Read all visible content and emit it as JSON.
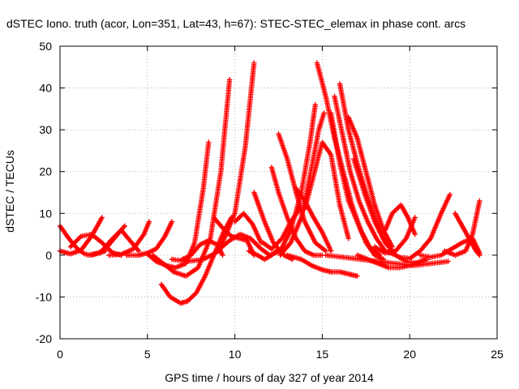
{
  "chart_data": {
    "type": "scatter",
    "title": "dSTEC Iono. truth (acor, Lon=351, Lat=43, h=67): STEC-STEC_elemax in phase cont. arcs",
    "xlabel": "GPS time / hours of day 327 of year 2014",
    "ylabel": "dSTEC  / TECUs",
    "xlim": [
      0,
      25
    ],
    "ylim": [
      -20,
      50
    ],
    "xticks": [
      0,
      5,
      10,
      15,
      20,
      25
    ],
    "yticks": [
      -20,
      -10,
      0,
      10,
      20,
      30,
      40,
      50
    ],
    "xtick_labels": [
      "0",
      "5",
      "10",
      "15",
      "20",
      "25"
    ],
    "ytick_labels": [
      "-20",
      "-10",
      "0",
      "10",
      "20",
      "30",
      "40",
      "50"
    ],
    "grid": true,
    "marker": "+",
    "color": "#ff0000",
    "series": [
      {
        "x": [
          0.0,
          0.5,
          1.0,
          1.4,
          1.8,
          2.2,
          2.6
        ],
        "y": [
          7,
          4,
          1.5,
          0.3,
          0,
          0.5,
          1
        ]
      },
      {
        "x": [
          0.0,
          0.6,
          1.2,
          1.8,
          2.4
        ],
        "y": [
          1,
          0.3,
          1.2,
          4.5,
          9
        ]
      },
      {
        "x": [
          0.6,
          1.2,
          1.8,
          2.4,
          3.0,
          3.5
        ],
        "y": [
          2,
          4.5,
          5,
          3,
          0.6,
          0
        ]
      },
      {
        "x": [
          1.6,
          2.2,
          2.7,
          3.3,
          3.7
        ],
        "y": [
          0,
          0.5,
          2,
          5,
          7
        ]
      },
      {
        "x": [
          2.3,
          2.9,
          3.5,
          4.0,
          4.5
        ],
        "y": [
          0.5,
          3.5,
          6,
          3.5,
          1
        ]
      },
      {
        "x": [
          2.8,
          3.5,
          4.2,
          4.8,
          5.1
        ],
        "y": [
          0,
          0.2,
          1.5,
          5,
          8
        ]
      },
      {
        "x": [
          3.8,
          4.5,
          5.0,
          5.5,
          6.0,
          6.4
        ],
        "y": [
          0,
          0,
          0.5,
          1.5,
          4.5,
          8
        ]
      },
      {
        "x": [
          5.0,
          5.5,
          6.1,
          6.6,
          7.2,
          7.7,
          8.2,
          8.5
        ],
        "y": [
          0.3,
          -1.5,
          -2.5,
          -3,
          -2,
          3,
          16,
          27
        ]
      },
      {
        "x": [
          5.3,
          5.9,
          6.5,
          7.2,
          7.9,
          8.6,
          9.2,
          9.7
        ],
        "y": [
          0,
          -2,
          -4,
          -5,
          -3,
          4,
          20,
          42
        ]
      },
      {
        "x": [
          5.8,
          6.3,
          6.9,
          7.3,
          7.8,
          8.3,
          8.8,
          9.3,
          9.8
        ],
        "y": [
          -7,
          -10,
          -11.5,
          -11,
          -9,
          -5,
          0,
          5,
          9
        ]
      },
      {
        "x": [
          7.0,
          7.5,
          8.0,
          8.5,
          9.0,
          9.3
        ],
        "y": [
          -1,
          0,
          2.5,
          3.5,
          2.5,
          0
        ]
      },
      {
        "x": [
          6.4,
          7.3,
          8.2,
          9.1,
          10.0,
          10.6,
          11.1
        ],
        "y": [
          -1,
          -1.5,
          -1,
          1,
          10,
          26,
          46
        ]
      },
      {
        "x": [
          8.8,
          9.3,
          9.8,
          10.3,
          10.7,
          11.1
        ],
        "y": [
          9,
          6.5,
          4.5,
          4,
          3.5,
          0
        ]
      },
      {
        "x": [
          9.0,
          9.7,
          10.3,
          10.9,
          11.5,
          12.0
        ],
        "y": [
          1,
          3.5,
          5,
          4,
          1.5,
          0
        ]
      },
      {
        "x": [
          10.0,
          10.5,
          11.0,
          11.5
        ],
        "y": [
          8,
          10,
          7.5,
          3
        ]
      },
      {
        "x": [
          10.8,
          11.3,
          11.7,
          12.1,
          12.5
        ],
        "y": [
          1,
          0,
          -1,
          0,
          1.5
        ]
      },
      {
        "x": [
          11.1,
          11.7,
          12.2,
          12.8,
          13.3
        ],
        "y": [
          15,
          8,
          3,
          0,
          -1
        ]
      },
      {
        "x": [
          11.6,
          12.1,
          12.7,
          13.2,
          13.7
        ],
        "y": [
          3,
          1.5,
          4,
          8,
          11
        ]
      },
      {
        "x": [
          12.1,
          12.5,
          13.0,
          13.5,
          14.0,
          14.5,
          15.0
        ],
        "y": [
          21,
          15,
          9,
          4,
          1,
          0,
          0
        ]
      },
      {
        "x": [
          12.5,
          13.0,
          13.5,
          14.0,
          14.6,
          15.2
        ],
        "y": [
          29,
          23,
          15,
          8,
          3,
          1
        ]
      },
      {
        "x": [
          12.0,
          12.6,
          13.2,
          13.8,
          14.3,
          14.6
        ],
        "y": [
          0,
          1,
          6,
          15,
          27,
          36
        ]
      },
      {
        "x": [
          12.6,
          13.2,
          13.8,
          14.3,
          14.8,
          15.1
        ],
        "y": [
          0,
          3,
          9,
          19,
          30,
          34
        ]
      },
      {
        "x": [
          13.0,
          13.8,
          14.4,
          15.0,
          15.5,
          16.0,
          16.5,
          17.0
        ],
        "y": [
          0,
          -1,
          -2.5,
          -3.5,
          -4,
          -4,
          -4.5,
          -5
        ]
      },
      {
        "x": [
          13.5,
          14.0,
          14.5,
          15.0,
          15.5
        ],
        "y": [
          16,
          13,
          9,
          5.5,
          1
        ]
      },
      {
        "x": [
          14.0,
          14.5,
          15.0,
          15.5,
          16.0,
          16.5
        ],
        "y": [
          11,
          19,
          27,
          24,
          12,
          4
        ]
      },
      {
        "x": [
          14.7,
          15.2,
          15.7,
          16.2,
          16.7,
          17.2,
          17.7,
          18.3
        ],
        "y": [
          46,
          38,
          28,
          20,
          12,
          6,
          2,
          0
        ]
      },
      {
        "x": [
          15.5,
          16.0,
          16.5,
          17.0,
          17.5,
          18.0,
          18.5
        ],
        "y": [
          34,
          22,
          13,
          8,
          3,
          0,
          -1
        ]
      },
      {
        "x": [
          15.7,
          16.2,
          16.6,
          17.1,
          17.6,
          18.1,
          18.6,
          19.2
        ],
        "y": [
          38,
          28,
          20,
          13,
          8,
          4,
          1,
          0
        ]
      },
      {
        "x": [
          16.0,
          16.5,
          17.0,
          17.5,
          18.0,
          18.5,
          19.0
        ],
        "y": [
          41,
          30,
          22,
          15,
          9,
          4,
          1
        ]
      },
      {
        "x": [
          16.5,
          17.0,
          17.5,
          18.0,
          18.5,
          19.0
        ],
        "y": [
          33,
          28,
          20,
          12,
          6,
          2
        ]
      },
      {
        "x": [
          16.8,
          17.4,
          18.0,
          18.6,
          19.2,
          19.8,
          20.5
        ],
        "y": [
          23,
          15,
          8,
          3,
          0,
          -1.5,
          -2
        ]
      },
      {
        "x": [
          15.2,
          16.2,
          17.2,
          18.2,
          19.2,
          20.2,
          21.2,
          22.2
        ],
        "y": [
          0,
          -0.5,
          -1,
          -1.5,
          -2,
          -2.5,
          -2,
          -1.5
        ]
      },
      {
        "x": [
          17.0,
          17.6,
          18.2,
          18.8,
          19.4,
          20.0,
          20.6,
          21.0
        ],
        "y": [
          0,
          -1,
          -2,
          -3,
          -3,
          -2.5,
          -1.5,
          -1
        ]
      },
      {
        "x": [
          18.0,
          18.6,
          19.2,
          19.8,
          20.3
        ],
        "y": [
          2,
          0.5,
          1,
          4,
          9
        ]
      },
      {
        "x": [
          18.6,
          19.0,
          19.5,
          19.9,
          20.3
        ],
        "y": [
          6,
          10,
          12,
          9,
          5
        ]
      },
      {
        "x": [
          19.4,
          20.0,
          20.6,
          21.2,
          21.8,
          22.3
        ],
        "y": [
          -0.5,
          -0.8,
          1,
          4,
          10,
          14.5
        ]
      },
      {
        "x": [
          20.6,
          21.2,
          21.8,
          22.4,
          23.0,
          23.6,
          24.0
        ],
        "y": [
          0,
          -0.5,
          0,
          1.5,
          3,
          4,
          0.5
        ]
      },
      {
        "x": [
          22.0,
          22.6,
          23.2,
          23.6,
          24.0
        ],
        "y": [
          1,
          0,
          1,
          5,
          13
        ]
      },
      {
        "x": [
          22.6,
          23.0,
          23.4,
          23.8,
          24.0
        ],
        "y": [
          10,
          7,
          4,
          1,
          0
        ]
      }
    ]
  }
}
